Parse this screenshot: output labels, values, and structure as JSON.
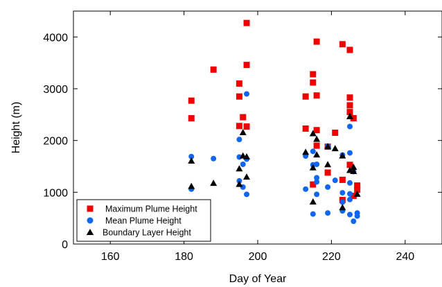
{
  "chart_data": {
    "type": "scatter",
    "xlabel": "Day of Year",
    "ylabel": "Height (m)",
    "xlim": [
      150,
      250
    ],
    "ylim": [
      0,
      4500
    ],
    "xticks": [
      160,
      180,
      200,
      220,
      240
    ],
    "yticks": [
      0,
      1000,
      2000,
      3000,
      4000
    ],
    "grid": false,
    "legend_position": "bottom-left",
    "series": [
      {
        "name": "Maximum Plume Height",
        "marker": "square",
        "color": "#ee0000",
        "points": [
          [
            182,
            2770
          ],
          [
            182,
            2430
          ],
          [
            188,
            3370
          ],
          [
            195,
            3100
          ],
          [
            195,
            2850
          ],
          [
            195,
            2280
          ],
          [
            196,
            2450
          ],
          [
            197,
            4270
          ],
          [
            197,
            3460
          ],
          [
            197,
            2270
          ],
          [
            213,
            2850
          ],
          [
            213,
            2230
          ],
          [
            215,
            3280
          ],
          [
            215,
            3120
          ],
          [
            215,
            1150
          ],
          [
            216,
            3910
          ],
          [
            216,
            2870
          ],
          [
            216,
            2200
          ],
          [
            216,
            1900
          ],
          [
            219,
            1880
          ],
          [
            219,
            1380
          ],
          [
            221,
            2150
          ],
          [
            223,
            3860
          ],
          [
            223,
            1240
          ],
          [
            223,
            850
          ],
          [
            225,
            3750
          ],
          [
            225,
            2830
          ],
          [
            225,
            2680
          ],
          [
            225,
            2550
          ],
          [
            225,
            1530
          ],
          [
            226,
            2430
          ],
          [
            226,
            930
          ],
          [
            227,
            1130
          ],
          [
            227,
            1050
          ]
        ]
      },
      {
        "name": "Mean Plume Height",
        "marker": "circle",
        "color": "#1166ee",
        "points": [
          [
            182,
            1690
          ],
          [
            182,
            1060
          ],
          [
            188,
            1650
          ],
          [
            195,
            2020
          ],
          [
            195,
            1680
          ],
          [
            195,
            1220
          ],
          [
            196,
            1540
          ],
          [
            196,
            1100
          ],
          [
            197,
            2900
          ],
          [
            197,
            1640
          ],
          [
            197,
            960
          ],
          [
            213,
            1700
          ],
          [
            213,
            1060
          ],
          [
            215,
            1790
          ],
          [
            215,
            1530
          ],
          [
            215,
            580
          ],
          [
            216,
            1540
          ],
          [
            216,
            1280
          ],
          [
            216,
            1200
          ],
          [
            216,
            960
          ],
          [
            219,
            1890
          ],
          [
            219,
            1100
          ],
          [
            219,
            600
          ],
          [
            221,
            1230
          ],
          [
            223,
            1720
          ],
          [
            223,
            990
          ],
          [
            223,
            810
          ],
          [
            223,
            640
          ],
          [
            225,
            2270
          ],
          [
            225,
            1760
          ],
          [
            225,
            1180
          ],
          [
            225,
            970
          ],
          [
            225,
            860
          ],
          [
            225,
            570
          ],
          [
            226,
            1400
          ],
          [
            226,
            440
          ],
          [
            227,
            600
          ],
          [
            227,
            540
          ]
        ]
      },
      {
        "name": "Boundary Layer Height",
        "marker": "triangle",
        "color": "#000000",
        "points": [
          [
            182,
            1600
          ],
          [
            182,
            1110
          ],
          [
            188,
            1170
          ],
          [
            195,
            1450
          ],
          [
            195,
            1150
          ],
          [
            196,
            2150
          ],
          [
            196,
            1700
          ],
          [
            197,
            1680
          ],
          [
            197,
            1290
          ],
          [
            213,
            1770
          ],
          [
            215,
            2130
          ],
          [
            215,
            1470
          ],
          [
            215,
            810
          ],
          [
            216,
            2020
          ],
          [
            216,
            1720
          ],
          [
            219,
            1880
          ],
          [
            219,
            1530
          ],
          [
            221,
            1840
          ],
          [
            223,
            1700
          ],
          [
            223,
            700
          ],
          [
            225,
            2460
          ],
          [
            225,
            1420
          ],
          [
            226,
            1480
          ],
          [
            226,
            1400
          ],
          [
            227,
            960
          ]
        ]
      }
    ]
  }
}
